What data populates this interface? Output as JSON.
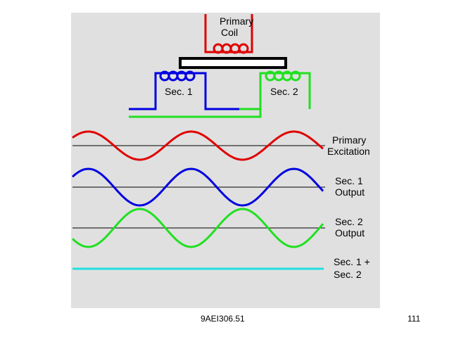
{
  "coils": {
    "primary": [
      "Primary",
      "Coil"
    ],
    "sec1": "Sec. 1",
    "sec2": "Sec. 2"
  },
  "waveforms": [
    {
      "label": [
        "Primary",
        "Excitation"
      ]
    },
    {
      "label": [
        "Sec. 1",
        "Output"
      ]
    },
    {
      "label": [
        "Sec. 2",
        "Output"
      ]
    },
    {
      "label": [
        "Sec. 1 +",
        "Sec. 2"
      ]
    }
  ],
  "footer": {
    "code": "9AEI306.51",
    "page": "111"
  }
}
